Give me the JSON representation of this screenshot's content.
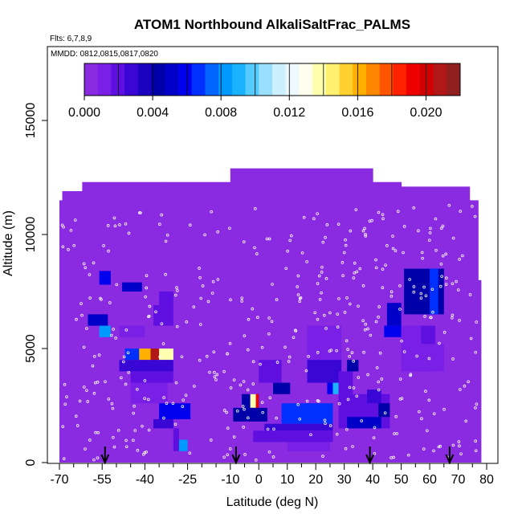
{
  "chart_data": {
    "type": "heatmap",
    "title": "ATOM1 Northbound AlkaliSaltFrac_PALMS",
    "notes": [
      "Flts: 6,7,8,9",
      "MMDD: 0812,0815,0817,0820"
    ],
    "xlabel": "Latitude (deg N)",
    "ylabel": "Altitude (m)",
    "xlim": [
      -70,
      80
    ],
    "ylim": [
      0,
      17500
    ],
    "x_ticks": [
      -70,
      -55,
      -40,
      -25,
      -10,
      0,
      10,
      20,
      30,
      40,
      50,
      60,
      70,
      80
    ],
    "x_minor_ticks": [
      -65,
      -60,
      -50,
      -45,
      -35,
      -30,
      -20,
      -15,
      -5,
      5,
      15,
      25,
      35,
      45,
      55,
      65,
      75
    ],
    "y_ticks": [
      0,
      5000,
      10000,
      15000
    ],
    "colorbar": {
      "range": [
        0,
        0.022
      ],
      "ticks": [
        "0.000",
        "0.004",
        "0.008",
        "0.012",
        "0.016",
        "0.020"
      ],
      "tick_values": [
        0,
        0.004,
        0.008,
        0.012,
        0.016,
        0.02
      ],
      "colors": [
        "#8a2be2",
        "#7a1fe6",
        "#5f10e0",
        "#3a06d6",
        "#1a02c0",
        "#0000a8",
        "#0000c8",
        "#0000ee",
        "#0030ff",
        "#0066ff",
        "#0099ff",
        "#1ab2ff",
        "#55ccff",
        "#99e0ff",
        "#ccf0ff",
        "#eef8ff",
        "#ffffee",
        "#ffffb0",
        "#fff070",
        "#ffd030",
        "#ffb000",
        "#ff8800",
        "#ff5500",
        "#ff2200",
        "#ee0000",
        "#d00000",
        "#b01818",
        "#902020"
      ]
    },
    "background_value": 0,
    "envelope": [
      {
        "x0": -70,
        "x1": -69,
        "ymax": 11500
      },
      {
        "x0": -69,
        "x1": -62,
        "ymax": 11900
      },
      {
        "x0": -62,
        "x1": -34,
        "ymax": 12300
      },
      {
        "x0": -34,
        "x1": -10,
        "ymax": 12300
      },
      {
        "x0": -10,
        "x1": 40,
        "ymax": 12900
      },
      {
        "x0": 40,
        "x1": 50,
        "ymax": 12300
      },
      {
        "x0": 50,
        "x1": 74,
        "ymax": 12100
      },
      {
        "x0": 74,
        "x1": 77,
        "ymax": 11500
      },
      {
        "x0": 77,
        "x1": 78,
        "ymax": 8000
      }
    ],
    "cells": [
      {
        "x0": -56,
        "x1": -52,
        "y0": 7800,
        "y1": 8400,
        "v": 0.006
      },
      {
        "x0": -48,
        "x1": -41,
        "y0": 7500,
        "y1": 7900,
        "v": 0.005
      },
      {
        "x0": -35,
        "x1": -30,
        "y0": 6900,
        "y1": 7500,
        "v": 0.002
      },
      {
        "x0": -37,
        "x1": -30,
        "y0": 6000,
        "y1": 6900,
        "v": 0.002
      },
      {
        "x0": -60,
        "x1": -53,
        "y0": 6000,
        "y1": 6500,
        "v": 0.005
      },
      {
        "x0": -56,
        "x1": -52,
        "y0": 5500,
        "y1": 6000,
        "v": 0.008
      },
      {
        "x0": -49,
        "x1": -40,
        "y0": 5500,
        "y1": 6000,
        "v": 0.001
      },
      {
        "x0": -47,
        "x1": -42,
        "y0": 4500,
        "y1": 5000,
        "v": 0.007
      },
      {
        "x0": -42,
        "x1": -38,
        "y0": 4500,
        "y1": 5000,
        "v": 0.016
      },
      {
        "x0": -38,
        "x1": -35,
        "y0": 4500,
        "y1": 5000,
        "v": 0.021
      },
      {
        "x0": -35,
        "x1": -30,
        "y0": 4500,
        "y1": 5000,
        "v": 0.014
      },
      {
        "x0": -49,
        "x1": -30,
        "y0": 4000,
        "y1": 4500,
        "v": 0.003
      },
      {
        "x0": -45,
        "x1": -30,
        "y0": 3500,
        "y1": 4000,
        "v": 0.002
      },
      {
        "x0": -45,
        "x1": -32,
        "y0": 2600,
        "y1": 3500,
        "v": 0.001
      },
      {
        "x0": -35,
        "x1": -24,
        "y0": 1900,
        "y1": 2600,
        "v": 0.006
      },
      {
        "x0": -37,
        "x1": -30,
        "y0": 1500,
        "y1": 1900,
        "v": 0.003
      },
      {
        "x0": -30,
        "x1": -28,
        "y0": 500,
        "y1": 1500,
        "v": 0.002
      },
      {
        "x0": -28,
        "x1": -25,
        "y0": 500,
        "y1": 1000,
        "v": 0.008
      },
      {
        "x0": -6,
        "x1": 0,
        "y0": 2400,
        "y1": 3000,
        "v": 0.004
      },
      {
        "x0": -3,
        "x1": -1,
        "y0": 2400,
        "y1": 3000,
        "v": 0.014
      },
      {
        "x0": -1,
        "x1": 0,
        "y0": 2400,
        "y1": 3000,
        "v": 0.019
      },
      {
        "x0": -9,
        "x1": 3,
        "y0": 1800,
        "y1": 2400,
        "v": 0.004
      },
      {
        "x0": 0,
        "x1": 8,
        "y0": 3500,
        "y1": 4500,
        "v": 0.002
      },
      {
        "x0": 5,
        "x1": 11,
        "y0": 3000,
        "y1": 3500,
        "v": 0.004
      },
      {
        "x0": 8,
        "x1": 26,
        "y0": 1700,
        "y1": 2600,
        "v": 0.007
      },
      {
        "x0": 2,
        "x1": 26,
        "y0": 1400,
        "y1": 1700,
        "v": 0.003
      },
      {
        "x0": -2,
        "x1": 26,
        "y0": 900,
        "y1": 1400,
        "v": 0.002
      },
      {
        "x0": 10,
        "x1": 25,
        "y0": 500,
        "y1": 900,
        "v": 0.001
      },
      {
        "x0": 17,
        "x1": 29,
        "y0": 4500,
        "y1": 6000,
        "v": 0.001
      },
      {
        "x0": 17,
        "x1": 29,
        "y0": 3500,
        "y1": 4500,
        "v": 0.003
      },
      {
        "x0": 24,
        "x1": 26,
        "y0": 3000,
        "y1": 3500,
        "v": 0.006
      },
      {
        "x0": 26,
        "x1": 28,
        "y0": 3000,
        "y1": 3500,
        "v": 0.009
      },
      {
        "x0": 28,
        "x1": 33,
        "y0": 3000,
        "y1": 4000,
        "v": 0.002
      },
      {
        "x0": 31,
        "x1": 35,
        "y0": 4000,
        "y1": 4500,
        "v": 0.004
      },
      {
        "x0": 28,
        "x1": 46,
        "y0": 1500,
        "y1": 3000,
        "v": 0.002
      },
      {
        "x0": 31,
        "x1": 43,
        "y0": 1500,
        "y1": 2000,
        "v": 0.005
      },
      {
        "x0": 38,
        "x1": 43,
        "y0": 2600,
        "y1": 3200,
        "v": 0.003
      },
      {
        "x0": 42,
        "x1": 46,
        "y0": 2000,
        "y1": 2600,
        "v": 0.004
      },
      {
        "x0": 44,
        "x1": 50,
        "y0": 5500,
        "y1": 6000,
        "v": 0.006
      },
      {
        "x0": 45,
        "x1": 50,
        "y0": 6000,
        "y1": 7000,
        "v": 0.005
      },
      {
        "x0": 51,
        "x1": 65,
        "y0": 6500,
        "y1": 8500,
        "v": 0.004
      },
      {
        "x0": 60,
        "x1": 63,
        "y0": 6500,
        "y1": 8500,
        "v": 0.007
      },
      {
        "x0": 55,
        "x1": 62,
        "y0": 4000,
        "y1": 6000,
        "v": 0.002
      },
      {
        "x0": 50,
        "x1": 57,
        "y0": 4000,
        "y1": 6000,
        "v": 0.001
      },
      {
        "x0": 57,
        "x1": 65,
        "y0": 4000,
        "y1": 5200,
        "v": 0.001
      }
    ],
    "sample_points_count": 420,
    "arrows_x": [
      -54,
      -8,
      39,
      67
    ],
    "grid": false,
    "legend": "top-inside"
  }
}
